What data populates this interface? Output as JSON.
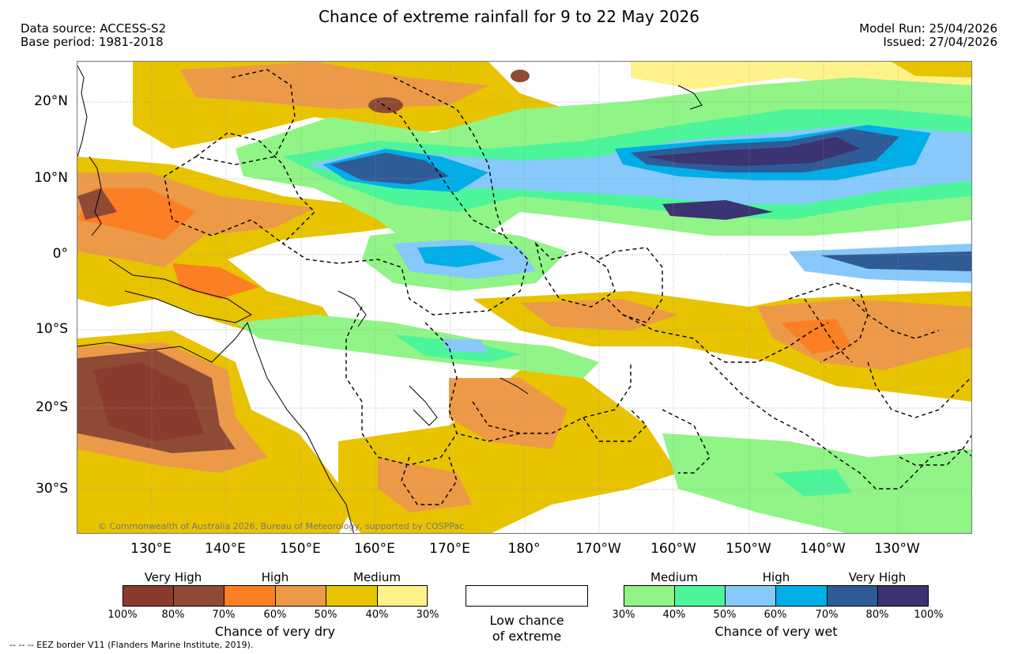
{
  "header": {
    "title": "Chance of extreme rainfall for 9 to 22 May 2026",
    "data_source": "Data source: ACCESS-S2",
    "base_period": "Base period: 1981-2018",
    "model_run": "Model Run: 25/04/2026",
    "issued": "Issued: 27/04/2026"
  },
  "map": {
    "lat_labels": [
      "20°N",
      "10°N",
      "0°",
      "10°S",
      "20°S",
      "30°S"
    ],
    "lon_labels": [
      "130°E",
      "140°E",
      "150°E",
      "160°E",
      "170°E",
      "180°",
      "170°W",
      "160°W",
      "150°W",
      "140°W",
      "130°W"
    ],
    "copyright": "© Commonwealth of Australia 2026, Bureau of Meteorology, supported by COSPPac"
  },
  "legend": {
    "dry": {
      "headings": [
        "Very High",
        "High",
        "Medium"
      ],
      "ticks": [
        "100%",
        "80%",
        "70%",
        "60%",
        "50%",
        "40%",
        "30%"
      ],
      "colors": [
        "#8b3a2e",
        "#8f4a35",
        "#fd7f23",
        "#ec9a48",
        "#e8c300",
        "#fef28a"
      ],
      "caption": "Chance of very dry"
    },
    "low": {
      "line1": "Low chance",
      "line2": "of extreme"
    },
    "wet": {
      "headings": [
        "Medium",
        "High",
        "Very High"
      ],
      "ticks": [
        "30%",
        "40%",
        "50%",
        "60%",
        "70%",
        "80%",
        "100%"
      ],
      "colors": [
        "#90f486",
        "#4df59a",
        "#87c9fa",
        "#00aee8",
        "#2f5b97",
        "#3b3372"
      ],
      "caption": "Chance of very wet"
    }
  },
  "footer": {
    "eez": "--  --  -- EEZ border V11 (Flanders Marine Institute, 2019)."
  }
}
